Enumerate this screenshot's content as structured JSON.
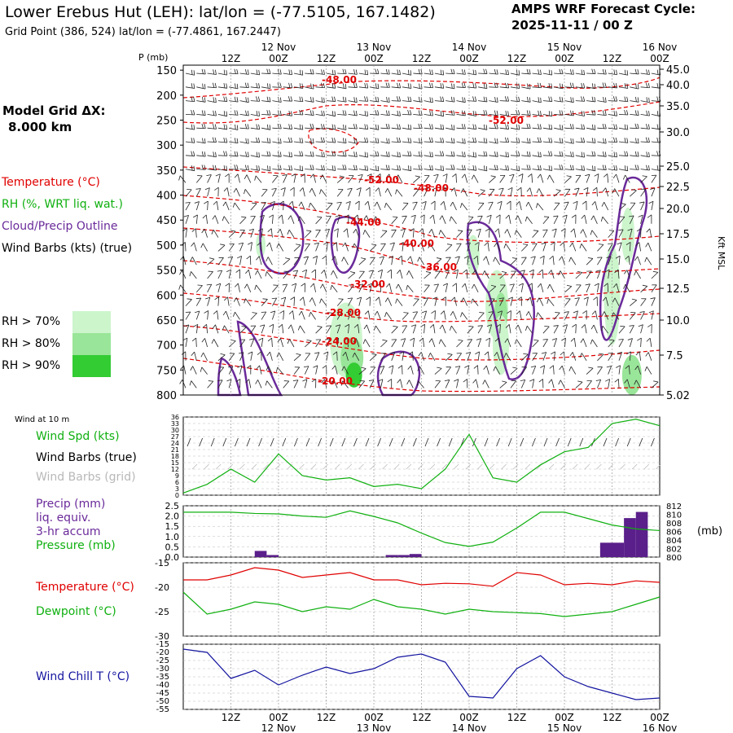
{
  "header": {
    "title": "Lower Erebus Hut (LEH):  lat/lon = (-77.5105, 167.1482)",
    "subtitle": "Grid Point (386, 524) lat/lon = (-77.4861, 167.2447)",
    "cycle_line1": "AMPS WRF Forecast Cycle:",
    "cycle_line2": "2025-11-11 / 00  Z"
  },
  "sidebar": {
    "grid_label": "Model Grid ΔX:",
    "grid_value": "8.000 km",
    "legend_temperature": "Temperature (°C)",
    "legend_rh": "RH (%, WRT liq. wat.)",
    "legend_cloud": "Cloud/Precip Outline",
    "legend_wind": "Wind Barbs (kts) (true)",
    "rh70": "RH > 70%",
    "rh80": "RH > 80%",
    "rh90": "RH > 90%",
    "wind_at_10m": "Wind at 10 m",
    "wind_spd": "Wind Spd (kts)",
    "wind_barbs_true": "Wind Barbs (true)",
    "wind_barbs_grid": "Wind Barbs (grid)",
    "precip_1": "Precip (mm)",
    "precip_2": "liq. equiv.",
    "precip_3": "3-hr accum",
    "pressure": "Pressure (mb)",
    "temperature": "Temperature (°C)",
    "dewpoint": "Dewpoint (°C)",
    "wind_chill": "Wind Chill T (°C)"
  },
  "colors": {
    "temperature": "#e00000",
    "green": "#10b010",
    "purple": "#6a2a9a",
    "blue": "#1414a0",
    "gray": "#b8b8b8",
    "rh70": "#ccf5cc",
    "rh80": "#99e599",
    "rh90": "#33cc33",
    "precip_bar": "#5a1f8a"
  },
  "chart_data": [
    {
      "type": "heatmap",
      "name": "cross-section",
      "p_label": "P (mb)",
      "right_axis_label": "Kft MSL",
      "time_top_labels": [
        "12Z",
        "00Z",
        "12Z",
        "00Z",
        "12Z",
        "00Z",
        "12Z",
        "00Z",
        "12Z",
        "00Z"
      ],
      "date_top_labels": [
        "12 Nov",
        "13 Nov",
        "14 Nov",
        "15 Nov",
        "16 Nov"
      ],
      "pressure_ticks": [
        150,
        200,
        250,
        300,
        350,
        400,
        450,
        500,
        550,
        600,
        650,
        700,
        750,
        800
      ],
      "height_ticks_kft": [
        "45.0",
        "40.0",
        "35.0",
        "30.0",
        "25.0",
        "22.5",
        "20.0",
        "17.5",
        "15.0",
        "12.5",
        "10.0",
        "7.5",
        "5.02"
      ],
      "temperature_contour_labels": [
        "-48.00",
        "-52.00",
        "-52.00",
        "-48.00",
        "-44.00",
        "-40.00",
        "-36.00",
        "-32.00",
        "-28.00",
        "-24.00",
        "-20.00"
      ],
      "x_hours_range": [
        0,
        120
      ]
    },
    {
      "type": "line",
      "name": "wind",
      "y_ticks": [
        0,
        3,
        6,
        9,
        12,
        15,
        18,
        21,
        24,
        27,
        30,
        33,
        36
      ],
      "ylim": [
        0,
        36
      ],
      "x_hours": [
        0,
        6,
        12,
        18,
        24,
        30,
        36,
        42,
        48,
        54,
        60,
        66,
        72,
        78,
        84,
        90,
        96,
        102,
        108,
        114,
        120
      ],
      "wind_speed_kts": [
        1,
        5,
        12,
        6,
        19,
        9,
        7,
        8,
        4,
        5,
        3,
        12,
        28,
        8,
        6,
        14,
        20,
        22,
        33,
        35,
        32
      ]
    },
    {
      "type": "bar",
      "name": "precip-pressure",
      "y_left_ticks": [
        "0.0",
        "0.5",
        "1.0",
        "1.5",
        "2.0",
        "2.5"
      ],
      "y_left_range": [
        0,
        2.5
      ],
      "y_right_ticks": [
        "800",
        "802",
        "804",
        "806",
        "808",
        "810",
        "812"
      ],
      "y_right_range": [
        800,
        812
      ],
      "right_label": "(mb)",
      "precip_x_hours": [
        21,
        24,
        54,
        57,
        60,
        108,
        111,
        114,
        117
      ],
      "precip_mm": [
        0.3,
        0.1,
        0.1,
        0.1,
        0.15,
        0.7,
        0.7,
        1.9,
        2.2
      ],
      "pressure_x_hours": [
        0,
        6,
        12,
        18,
        24,
        30,
        36,
        42,
        48,
        54,
        60,
        66,
        72,
        78,
        84,
        90,
        96,
        102,
        108,
        114,
        120
      ],
      "pressure_mb": [
        810.5,
        810.5,
        810.5,
        810.2,
        810.1,
        809.6,
        809.3,
        810.8,
        809.5,
        808,
        805.6,
        803.4,
        802.5,
        803.5,
        806.8,
        810.5,
        810.5,
        809,
        807.5,
        806.6,
        806.2
      ]
    },
    {
      "type": "line",
      "name": "temperature-dewpoint",
      "y_ticks": [
        -15,
        -20,
        -25,
        -30
      ],
      "ylim": [
        -30,
        -15
      ],
      "x_hours": [
        0,
        6,
        12,
        18,
        24,
        30,
        36,
        42,
        48,
        54,
        60,
        66,
        72,
        78,
        84,
        90,
        96,
        102,
        108,
        114,
        120
      ],
      "temperature_c": [
        -18.5,
        -18.5,
        -17.5,
        -16,
        -16.5,
        -18,
        -17.5,
        -17,
        -18.5,
        -18.5,
        -19.5,
        -19.2,
        -19.3,
        -19.8,
        -17,
        -17.5,
        -19.5,
        -19.2,
        -19.5,
        -18.7,
        -19
      ],
      "dewpoint_c": [
        -21,
        -25.5,
        -24.5,
        -23,
        -23.5,
        -25,
        -24,
        -24.5,
        -22.5,
        -24,
        -24.5,
        -25.5,
        -24.5,
        -25,
        -25.2,
        -25.4,
        -26,
        -25.5,
        -25,
        -23.5,
        -22
      ]
    },
    {
      "type": "line",
      "name": "wind-chill",
      "y_ticks": [
        -15,
        -20,
        -25,
        -30,
        -35,
        -40,
        -45,
        -50,
        -55
      ],
      "ylim": [
        -55,
        -15
      ],
      "x_hours": [
        0,
        6,
        12,
        18,
        24,
        30,
        36,
        42,
        48,
        54,
        60,
        66,
        72,
        78,
        84,
        90,
        96,
        102,
        108,
        114,
        120
      ],
      "wind_chill_c": [
        -18,
        -20,
        -36,
        -31,
        -40,
        -34,
        -29,
        -33,
        -30,
        -23,
        -21,
        -26,
        -47,
        -48,
        -30,
        -22,
        -35,
        -41,
        -45,
        -49,
        -48
      ]
    }
  ],
  "bottom_axis": {
    "time_labels": [
      "12Z",
      "00Z",
      "12Z",
      "00Z",
      "12Z",
      "00Z",
      "12Z",
      "00Z",
      "12Z",
      "00Z"
    ],
    "date_labels": [
      "12 Nov",
      "13 Nov",
      "14 Nov",
      "15 Nov",
      "16 Nov"
    ]
  }
}
